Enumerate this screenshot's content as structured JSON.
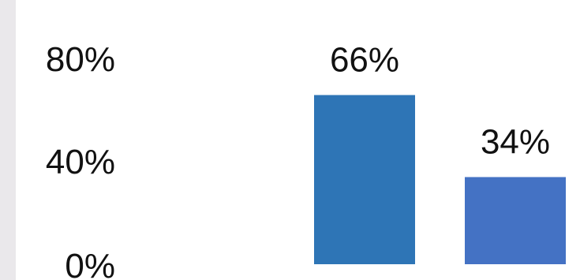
{
  "chart_data": {
    "type": "bar",
    "categories": [
      "",
      ""
    ],
    "values": [
      66,
      34
    ],
    "data_labels": [
      "66%",
      "34%"
    ],
    "ylim": [
      0,
      80
    ],
    "yticks": [
      0,
      40,
      80
    ],
    "ytick_labels": [
      "0%",
      "40%",
      "80%"
    ],
    "colors": [
      "#2e75b6",
      "#4472c4"
    ],
    "grid": false,
    "legend": "none"
  }
}
